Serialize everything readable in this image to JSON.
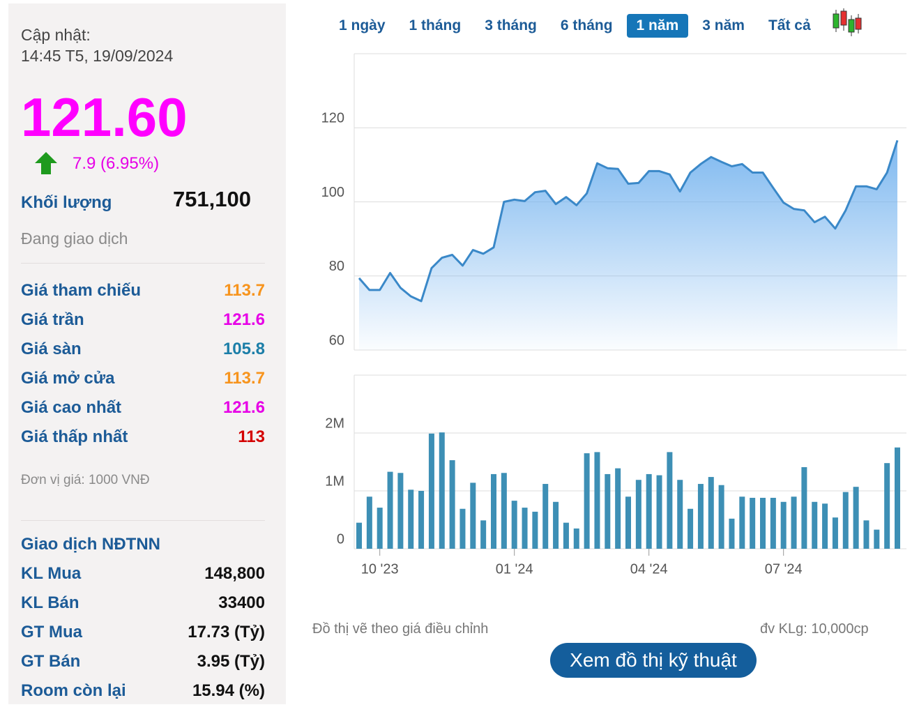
{
  "header": {
    "updated_label": "Cập nhật:",
    "updated_time": "14:45 T5, 19/09/2024"
  },
  "quote": {
    "price": "121.60",
    "change": "7.9 (6.95%)",
    "volume_label": "Khối lượng",
    "volume": "751,100",
    "status": "Đang giao dịch"
  },
  "prices": [
    {
      "label": "Giá tham chiếu",
      "value": "113.7",
      "color": "#f7941d"
    },
    {
      "label": "Giá trần",
      "value": "121.6",
      "color": "#e600e6"
    },
    {
      "label": "Giá sàn",
      "value": "105.8",
      "color": "#1b7ea8"
    },
    {
      "label": "Giá mở cửa",
      "value": "113.7",
      "color": "#f7941d"
    },
    {
      "label": "Giá cao nhất",
      "value": "121.6",
      "color": "#e600e6"
    },
    {
      "label": "Giá thấp nhất",
      "value": "113",
      "color": "#d40000"
    }
  ],
  "unit_note": "Đơn vị giá: 1000 VNĐ",
  "foreign": {
    "title": "Giao dịch NĐTNN",
    "rows": [
      {
        "label": "KL Mua",
        "value": "148,800"
      },
      {
        "label": "KL Bán",
        "value": "33400"
      },
      {
        "label": "GT Mua",
        "value": "17.73 (Tỷ)"
      },
      {
        "label": "GT Bán",
        "value": "3.95 (Tỷ)"
      },
      {
        "label": "Room còn lại",
        "value": "15.94 (%)"
      }
    ]
  },
  "tabs": {
    "items": [
      "1 ngày",
      "1 tháng",
      "3 tháng",
      "6 tháng",
      "1 năm",
      "3 năm",
      "Tất cả"
    ],
    "active": 4
  },
  "chart_data": [
    {
      "type": "area",
      "color": "#3a88c8",
      "values": [
        79.4,
        76.2,
        76.2,
        80.8,
        76.8,
        74.5,
        73.2,
        82.1,
        84.9,
        85.7,
        82.8,
        87.0,
        86.0,
        87.7,
        100.0,
        100.6,
        100.2,
        102.6,
        103.0,
        99.4,
        101.3,
        99.1,
        102.3,
        110.4,
        109.1,
        108.9,
        104.9,
        105.1,
        108.3,
        108.3,
        107.4,
        102.8,
        107.9,
        110.2,
        112.1,
        110.8,
        109.6,
        110.2,
        107.9,
        107.9,
        103.8,
        99.8,
        98.1,
        97.7,
        94.5,
        96.0,
        92.8,
        97.7,
        104.2,
        104.2,
        103.4,
        107.9,
        116.6
      ],
      "ylim": [
        60,
        140
      ],
      "yticks": [
        60,
        80,
        100,
        120
      ],
      "grid": true
    },
    {
      "type": "bar",
      "color": "#3d8fb5",
      "categories": [
        null,
        null,
        "10 '23",
        null,
        null,
        null,
        null,
        null,
        null,
        null,
        null,
        null,
        null,
        null,
        null,
        "01 '24",
        null,
        null,
        null,
        null,
        null,
        null,
        null,
        null,
        null,
        null,
        null,
        null,
        "04 '24",
        null,
        null,
        null,
        null,
        null,
        null,
        null,
        null,
        null,
        null,
        null,
        null,
        "07 '24",
        null,
        null,
        null,
        null,
        null,
        null,
        null,
        null,
        null,
        null,
        null
      ],
      "values": [
        450000,
        900000,
        710000,
        1330000,
        1310000,
        1020000,
        1000000,
        1990000,
        2010000,
        1530000,
        690000,
        1140000,
        490000,
        1290000,
        1310000,
        830000,
        710000,
        640000,
        1120000,
        810000,
        450000,
        350000,
        1650000,
        1670000,
        1290000,
        1390000,
        900000,
        1190000,
        1290000,
        1270000,
        1670000,
        1190000,
        690000,
        1120000,
        1240000,
        1100000,
        520000,
        900000,
        880000,
        880000,
        880000,
        810000,
        900000,
        1410000,
        810000,
        780000,
        540000,
        980000,
        1070000,
        490000,
        330000,
        1480000,
        1750000
      ],
      "ylim": [
        0,
        3000000
      ],
      "yticks": [
        0,
        {
          "value": 1000000,
          "label": "1M"
        },
        {
          "value": 2000000,
          "label": "2M"
        }
      ],
      "grid": true
    }
  ],
  "notes": {
    "adjusted": "Đồ thị vẽ theo giá điều chỉnh",
    "volume_unit": "đv KLg: 10,000cp"
  },
  "button": "Xem đồ thị kỹ thuật"
}
